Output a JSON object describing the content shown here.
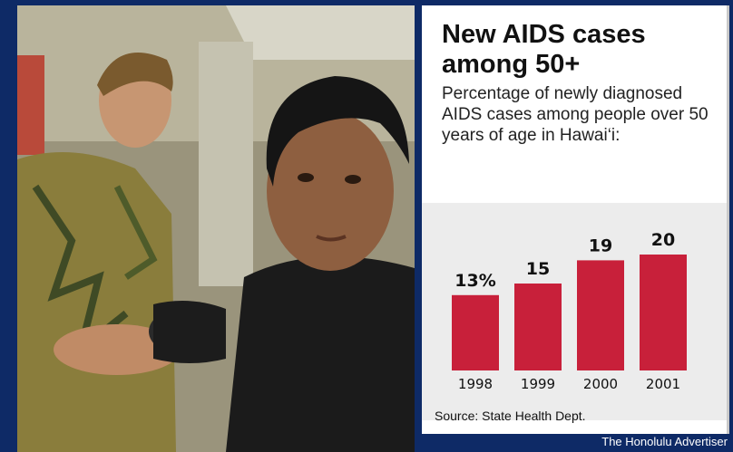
{
  "chart_data": {
    "type": "bar",
    "title": "New AIDS cases among 50+",
    "subtitle": "Percentage of newly diagnosed AIDS cases among people over 50 years of age in Hawai‘i:",
    "categories": [
      "1998",
      "1999",
      "2000",
      "2001"
    ],
    "values": [
      13,
      15,
      19,
      20
    ],
    "value_labels": [
      "13%",
      "15",
      "19",
      "20"
    ],
    "ylim": [
      0,
      20
    ],
    "grid": false,
    "bar_color": "#c8203a",
    "source": "Source: State Health Dept."
  },
  "credit": "The Honolulu Advertiser"
}
